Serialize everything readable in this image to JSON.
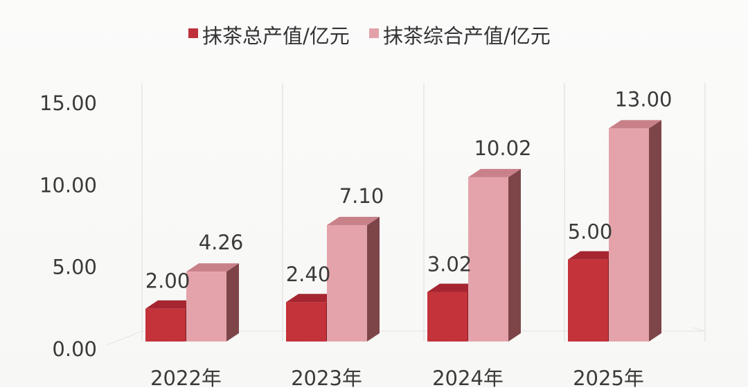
{
  "chart_data": {
    "type": "bar",
    "style": "3d-clustered-column",
    "categories": [
      "2022年",
      "2023年",
      "2024年",
      "2025年"
    ],
    "series": [
      {
        "name": "抹茶总产值/亿元",
        "values": [
          2.0,
          2.4,
          3.02,
          5.0
        ],
        "labels": [
          "2.00",
          "2.40",
          "3.02",
          "5.00"
        ],
        "color": "#c0303a"
      },
      {
        "name": "抹茶综合产值/亿元",
        "values": [
          4.26,
          7.1,
          10.02,
          13.0
        ],
        "labels": [
          "4.26",
          "7.10",
          "10.02",
          "13.00"
        ],
        "color": "#e2a1a8"
      }
    ],
    "y_ticks": [
      "0.00",
      "5.00",
      "10.00",
      "15.00"
    ],
    "ylim": [
      0,
      15
    ],
    "grid": "vertical category separators",
    "legend_position": "top-center"
  }
}
